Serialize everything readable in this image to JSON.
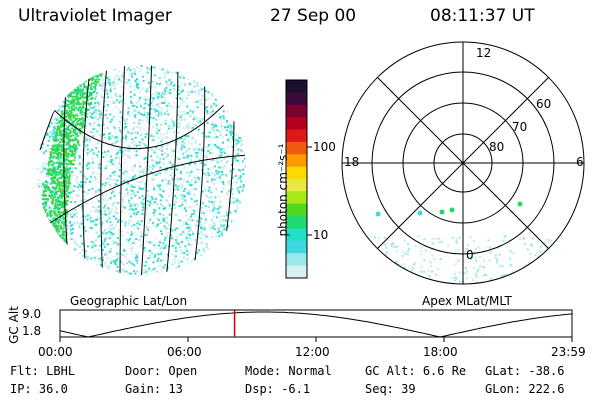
{
  "header": {
    "title": "Ultraviolet Imager",
    "date": "27 Sep 00",
    "time": "08:11:37 UT"
  },
  "colorbar": {
    "unit_label": "photon cm⁻²s⁻¹",
    "ticks": [
      "100",
      "10"
    ],
    "colors": [
      "#1a1030",
      "#3a0a3a",
      "#7a0030",
      "#b4001e",
      "#e01818",
      "#f05a0a",
      "#ff9a00",
      "#ffd800",
      "#e8e840",
      "#a8e818",
      "#50d820",
      "#20d870",
      "#20e0c8",
      "#40d8e0",
      "#9ae8e8",
      "#d8f0f0"
    ]
  },
  "geo_panel": {
    "label": "Geographic Lat/Lon"
  },
  "polar_panel": {
    "label": "Apex MLat/MLT",
    "mlt_labels": {
      "top": "12",
      "left": "18",
      "right": "6",
      "bottom": "0"
    },
    "lat_labels": [
      "60",
      "70",
      "80"
    ]
  },
  "timeline": {
    "axis_label": "GC Alt",
    "y_ticks": [
      "9.0",
      "1.8"
    ],
    "x_ticks": [
      "00:00",
      "06:00",
      "12:00",
      "18:00",
      "23:59"
    ],
    "current_time_fraction": 0.341,
    "marker_color": "#cc0000"
  },
  "info": {
    "flt_label": "Flt:",
    "flt_value": "LBHL",
    "ip_label": "IP:",
    "ip_value": "36.0",
    "door_label": "Door:",
    "door_value": "Open",
    "gain_label": "Gain:",
    "gain_value": "13",
    "mode_label": "Mode:",
    "mode_value": "Normal",
    "dsp_label": "Dsp:",
    "dsp_value": "-6.1",
    "gcalt_label": "GC Alt:",
    "gcalt_value": "6.6 Re",
    "seq_label": "Seq:",
    "seq_value": "39",
    "glat_label": "GLat:",
    "glat_value": "-38.6",
    "glon_label": "GLon:",
    "glon_value": "222.6"
  }
}
